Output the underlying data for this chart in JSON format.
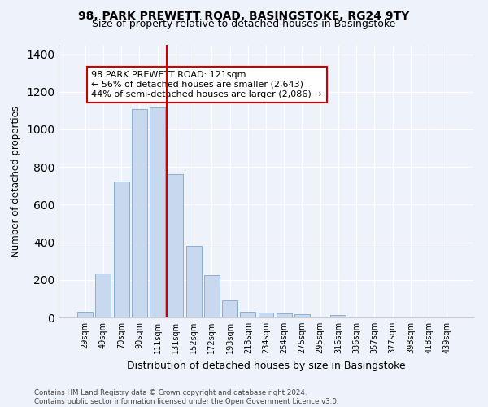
{
  "title": "98, PARK PREWETT ROAD, BASINGSTOKE, RG24 9TY",
  "subtitle": "Size of property relative to detached houses in Basingstoke",
  "xlabel": "Distribution of detached houses by size in Basingstoke",
  "ylabel": "Number of detached properties",
  "bar_labels": [
    "29sqm",
    "49sqm",
    "70sqm",
    "90sqm",
    "111sqm",
    "131sqm",
    "152sqm",
    "172sqm",
    "193sqm",
    "213sqm",
    "234sqm",
    "254sqm",
    "275sqm",
    "295sqm",
    "316sqm",
    "336sqm",
    "357sqm",
    "377sqm",
    "398sqm",
    "418sqm",
    "439sqm"
  ],
  "bar_values": [
    30,
    235,
    725,
    1110,
    1115,
    760,
    380,
    225,
    90,
    30,
    25,
    22,
    18,
    0,
    12,
    0,
    0,
    0,
    0,
    0,
    0
  ],
  "bar_color": "#c8d9ef",
  "bar_edge_color": "#8aafd4",
  "vline_x": 4.5,
  "vline_color": "#cc0000",
  "annotation_text": "98 PARK PREWETT ROAD: 121sqm\n← 56% of detached houses are smaller (2,643)\n44% of semi-detached houses are larger (2,086) →",
  "annotation_box_color": "#ffffff",
  "annotation_box_edge_color": "#cc0000",
  "ylim": [
    0,
    1450
  ],
  "yticks": [
    0,
    200,
    400,
    600,
    800,
    1000,
    1200,
    1400
  ],
  "bg_color": "#eef2fa",
  "plot_bg_color": "#eef2fa",
  "footer_line1": "Contains HM Land Registry data © Crown copyright and database right 2024.",
  "footer_line2": "Contains public sector information licensed under the Open Government Licence v3.0.",
  "title_fontsize": 10,
  "subtitle_fontsize": 9,
  "annotation_fontsize": 8
}
